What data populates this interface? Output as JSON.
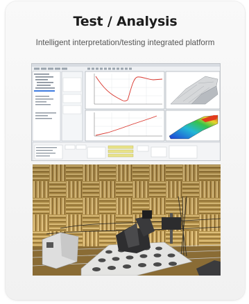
{
  "card": {
    "title": "Test / Analysis",
    "subtitle": "Intelligent interpretation/testing integrated platform"
  },
  "images": {
    "software_screenshot": "analysis-software-screenshot",
    "lab_photo": "anechoic-chamber-test-photo"
  },
  "colors": {
    "title": "#1c1c1c",
    "subtitle": "#555555",
    "plot_line": "#d9342b",
    "chamber_wedge": "#c7a257"
  }
}
